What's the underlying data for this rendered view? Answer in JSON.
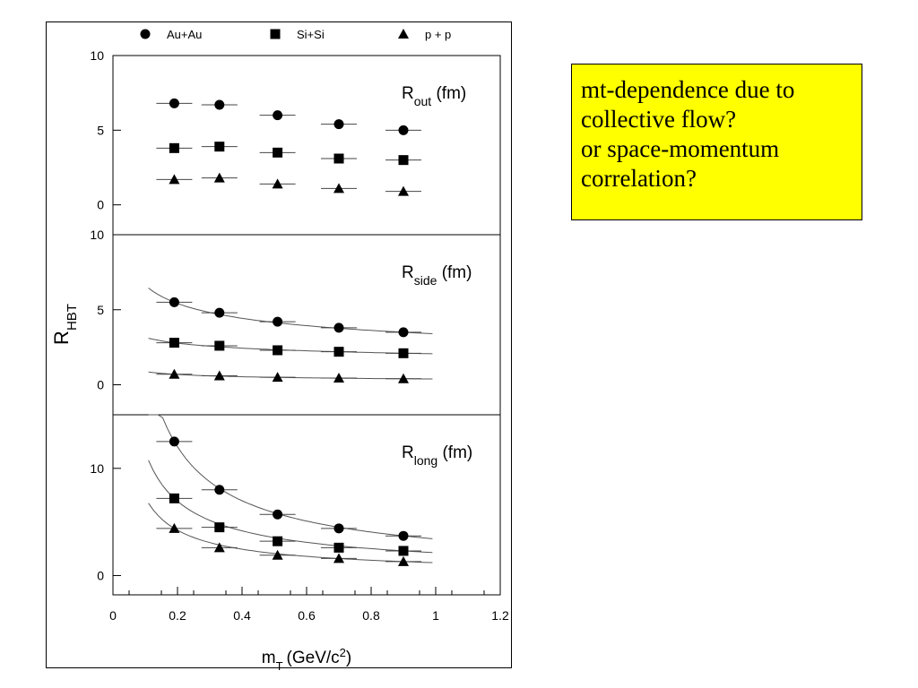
{
  "chart_data": {
    "type": "scatter",
    "xlabel": "m",
    "xlabel_sub": "T",
    "xlabel_unit": "(GeV/c",
    "xlabel_sup": "2",
    "xlabel_end": ")",
    "ylabel": "R",
    "ylabel_sub": "HBT",
    "xlim": [
      0,
      1.2
    ],
    "x_ticks": [
      "0",
      "0.2",
      "0.4",
      "0.6",
      "0.8",
      "1",
      "1.2"
    ],
    "legend_position": "top",
    "legend": [
      {
        "name": "Au+Au",
        "marker": "circle"
      },
      {
        "name": "Si+Si",
        "marker": "square"
      },
      {
        "name": "p + p",
        "marker": "triangle"
      }
    ],
    "panels": [
      {
        "label": "R",
        "label_sub": "out",
        "label_unit": " (fm)",
        "ylim": [
          -2,
          10
        ],
        "y_ticks": [
          0,
          5,
          10
        ],
        "fits": false,
        "series": [
          {
            "name": "Au+Au",
            "marker": "circle",
            "x": [
              0.19,
              0.33,
              0.51,
              0.7,
              0.9
            ],
            "y": [
              6.8,
              6.7,
              6.0,
              5.4,
              5.0
            ]
          },
          {
            "name": "Si+Si",
            "marker": "square",
            "x": [
              0.19,
              0.33,
              0.51,
              0.7,
              0.9
            ],
            "y": [
              3.8,
              3.9,
              3.5,
              3.1,
              3.0
            ]
          },
          {
            "name": "p + p",
            "marker": "triangle",
            "x": [
              0.19,
              0.33,
              0.51,
              0.7,
              0.9
            ],
            "y": [
              1.7,
              1.8,
              1.4,
              1.1,
              0.9
            ]
          }
        ]
      },
      {
        "label": "R",
        "label_sub": "side",
        "label_unit": " (fm)",
        "ylim": [
          -2,
          10
        ],
        "y_ticks": [
          0,
          5,
          10
        ],
        "fits": true,
        "series": [
          {
            "name": "Au+Au",
            "marker": "circle",
            "x": [
              0.19,
              0.33,
              0.51,
              0.7,
              0.9
            ],
            "y": [
              5.5,
              4.8,
              4.2,
              3.8,
              3.5
            ]
          },
          {
            "name": "Si+Si",
            "marker": "square",
            "x": [
              0.19,
              0.33,
              0.51,
              0.7,
              0.9
            ],
            "y": [
              2.8,
              2.6,
              2.3,
              2.2,
              2.1
            ]
          },
          {
            "name": "p + p",
            "marker": "triangle",
            "x": [
              0.19,
              0.33,
              0.51,
              0.7,
              0.9
            ],
            "y": [
              0.7,
              0.6,
              0.5,
              0.45,
              0.4
            ]
          }
        ]
      },
      {
        "label": "R",
        "label_sub": "long",
        "label_unit": " (fm)",
        "ylim": [
          -1.8,
          15
        ],
        "y_ticks": [
          0,
          10
        ],
        "fits": true,
        "series": [
          {
            "name": "Au+Au",
            "marker": "circle",
            "x": [
              0.19,
              0.33,
              0.51,
              0.7,
              0.9
            ],
            "y": [
              12.5,
              8.0,
              5.7,
              4.4,
              3.7
            ]
          },
          {
            "name": "Si+Si",
            "marker": "square",
            "x": [
              0.19,
              0.33,
              0.51,
              0.7,
              0.9
            ],
            "y": [
              7.2,
              4.5,
              3.2,
              2.6,
              2.3
            ]
          },
          {
            "name": "p + p",
            "marker": "triangle",
            "x": [
              0.19,
              0.33,
              0.51,
              0.7,
              0.9
            ],
            "y": [
              4.4,
              2.6,
              1.9,
              1.6,
              1.3
            ]
          }
        ]
      }
    ]
  },
  "note": {
    "lines": [
      "mt-dependence due to",
      "collective flow?",
      "or space-momentum",
      "correlation?"
    ],
    "background": "#ffff00"
  }
}
